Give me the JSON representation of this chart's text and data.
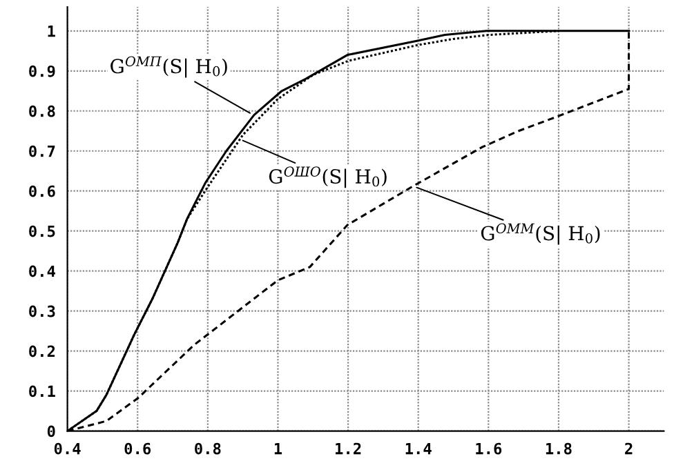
{
  "chart_data": {
    "type": "line",
    "xlim": [
      0.4,
      2.1
    ],
    "ylim": [
      0,
      1.06
    ],
    "xticks": [
      0.4,
      0.6,
      0.8,
      1,
      1.2,
      1.4,
      1.6,
      1.8,
      2
    ],
    "yticks": [
      0,
      0.1,
      0.2,
      0.3,
      0.4,
      0.5,
      0.6,
      0.7,
      0.8,
      0.9,
      1
    ],
    "grid": true,
    "marker": "none",
    "series": [
      {
        "color": "#000000",
        "line_style": "solid",
        "x": [
          0.4,
          0.483,
          0.511,
          0.59,
          0.642,
          0.714,
          0.741,
          0.793,
          0.853,
          0.932,
          1.011,
          1.079,
          1.198,
          1.396,
          1.476,
          1.595,
          1.8,
          2
        ],
        "values": [
          0,
          0.05,
          0.09,
          0.24,
          0.33,
          0.47,
          0.53,
          0.62,
          0.7,
          0.79,
          0.85,
          0.88,
          0.94,
          0.975,
          0.99,
          1,
          1,
          1
        ]
      },
      {
        "color": "#000000",
        "line_style": "dotted",
        "x": [
          0.4,
          0.483,
          0.511,
          0.59,
          0.642,
          0.714,
          0.741,
          0.8,
          0.9,
          1.0,
          1.1,
          1.2,
          1.3,
          1.4,
          1.5,
          1.6,
          1.8
        ],
        "values": [
          0,
          0.05,
          0.09,
          0.24,
          0.33,
          0.47,
          0.53,
          0.61,
          0.74,
          0.83,
          0.89,
          0.925,
          0.945,
          0.965,
          0.98,
          0.99,
          1
        ]
      },
      {
        "color": "#000000",
        "line_style": "dashed",
        "x": [
          0.4,
          0.511,
          0.602,
          0.761,
          1.0,
          1.091,
          1.198,
          1.385,
          1.583,
          1.686,
          1.793,
          2.0,
          2.0
        ],
        "values": [
          0,
          0.025,
          0.083,
          0.215,
          0.377,
          0.41,
          0.515,
          0.612,
          0.71,
          0.75,
          0.785,
          0.855,
          1
        ]
      }
    ],
    "annotations": [
      {
        "text": "G$^{ОМП}$(S| H$_{0}$)",
        "x": 0.93,
        "y": 0.79
      },
      {
        "text": "G$^{ОШО}$(S| H$_{0}$)",
        "x": 0.89,
        "y": 0.73
      },
      {
        "text": "G$^{ОММ}$(S| H$_{0}$)",
        "x": 1.385,
        "y": 0.612
      }
    ]
  }
}
